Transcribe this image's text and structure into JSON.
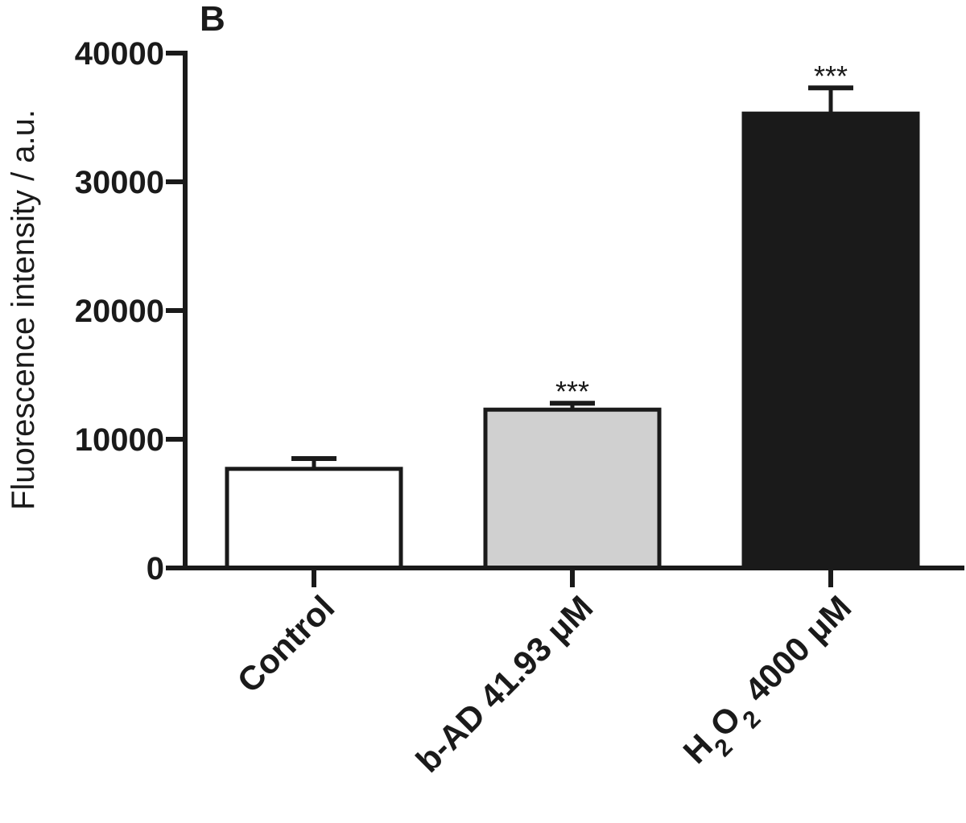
{
  "chart_data": {
    "type": "bar",
    "panel_label": "B",
    "ylabel": "Fluorescence intensity / a.u.",
    "xlabel": "",
    "ylim": [
      0,
      40000
    ],
    "yticks": [
      0,
      10000,
      20000,
      30000,
      40000
    ],
    "ytick_labels": [
      "0",
      "10000",
      "20000",
      "30000",
      "40000"
    ],
    "categories": [
      {
        "label": "Control",
        "parts": [
          {
            "text": "Control"
          }
        ]
      },
      {
        "label": "b-AD 41.93 μM",
        "parts": [
          {
            "text": "b-AD 41.93 μM"
          }
        ]
      },
      {
        "label": "H2O2 4000 μM",
        "parts": [
          {
            "text": "H"
          },
          {
            "text": "2",
            "sub": true
          },
          {
            "text": "O"
          },
          {
            "text": "2",
            "sub": true
          },
          {
            "text": " 4000 μM"
          }
        ]
      }
    ],
    "values": [
      7700,
      12300,
      35300
    ],
    "errors": [
      800,
      500,
      2000
    ],
    "annotations": [
      "",
      "***",
      "***"
    ],
    "colors": [
      "#ffffff",
      "#d0d0d0",
      "#1a1a1a"
    ],
    "edge_color": "#1a1a1a",
    "grid": false,
    "legend": "none"
  }
}
